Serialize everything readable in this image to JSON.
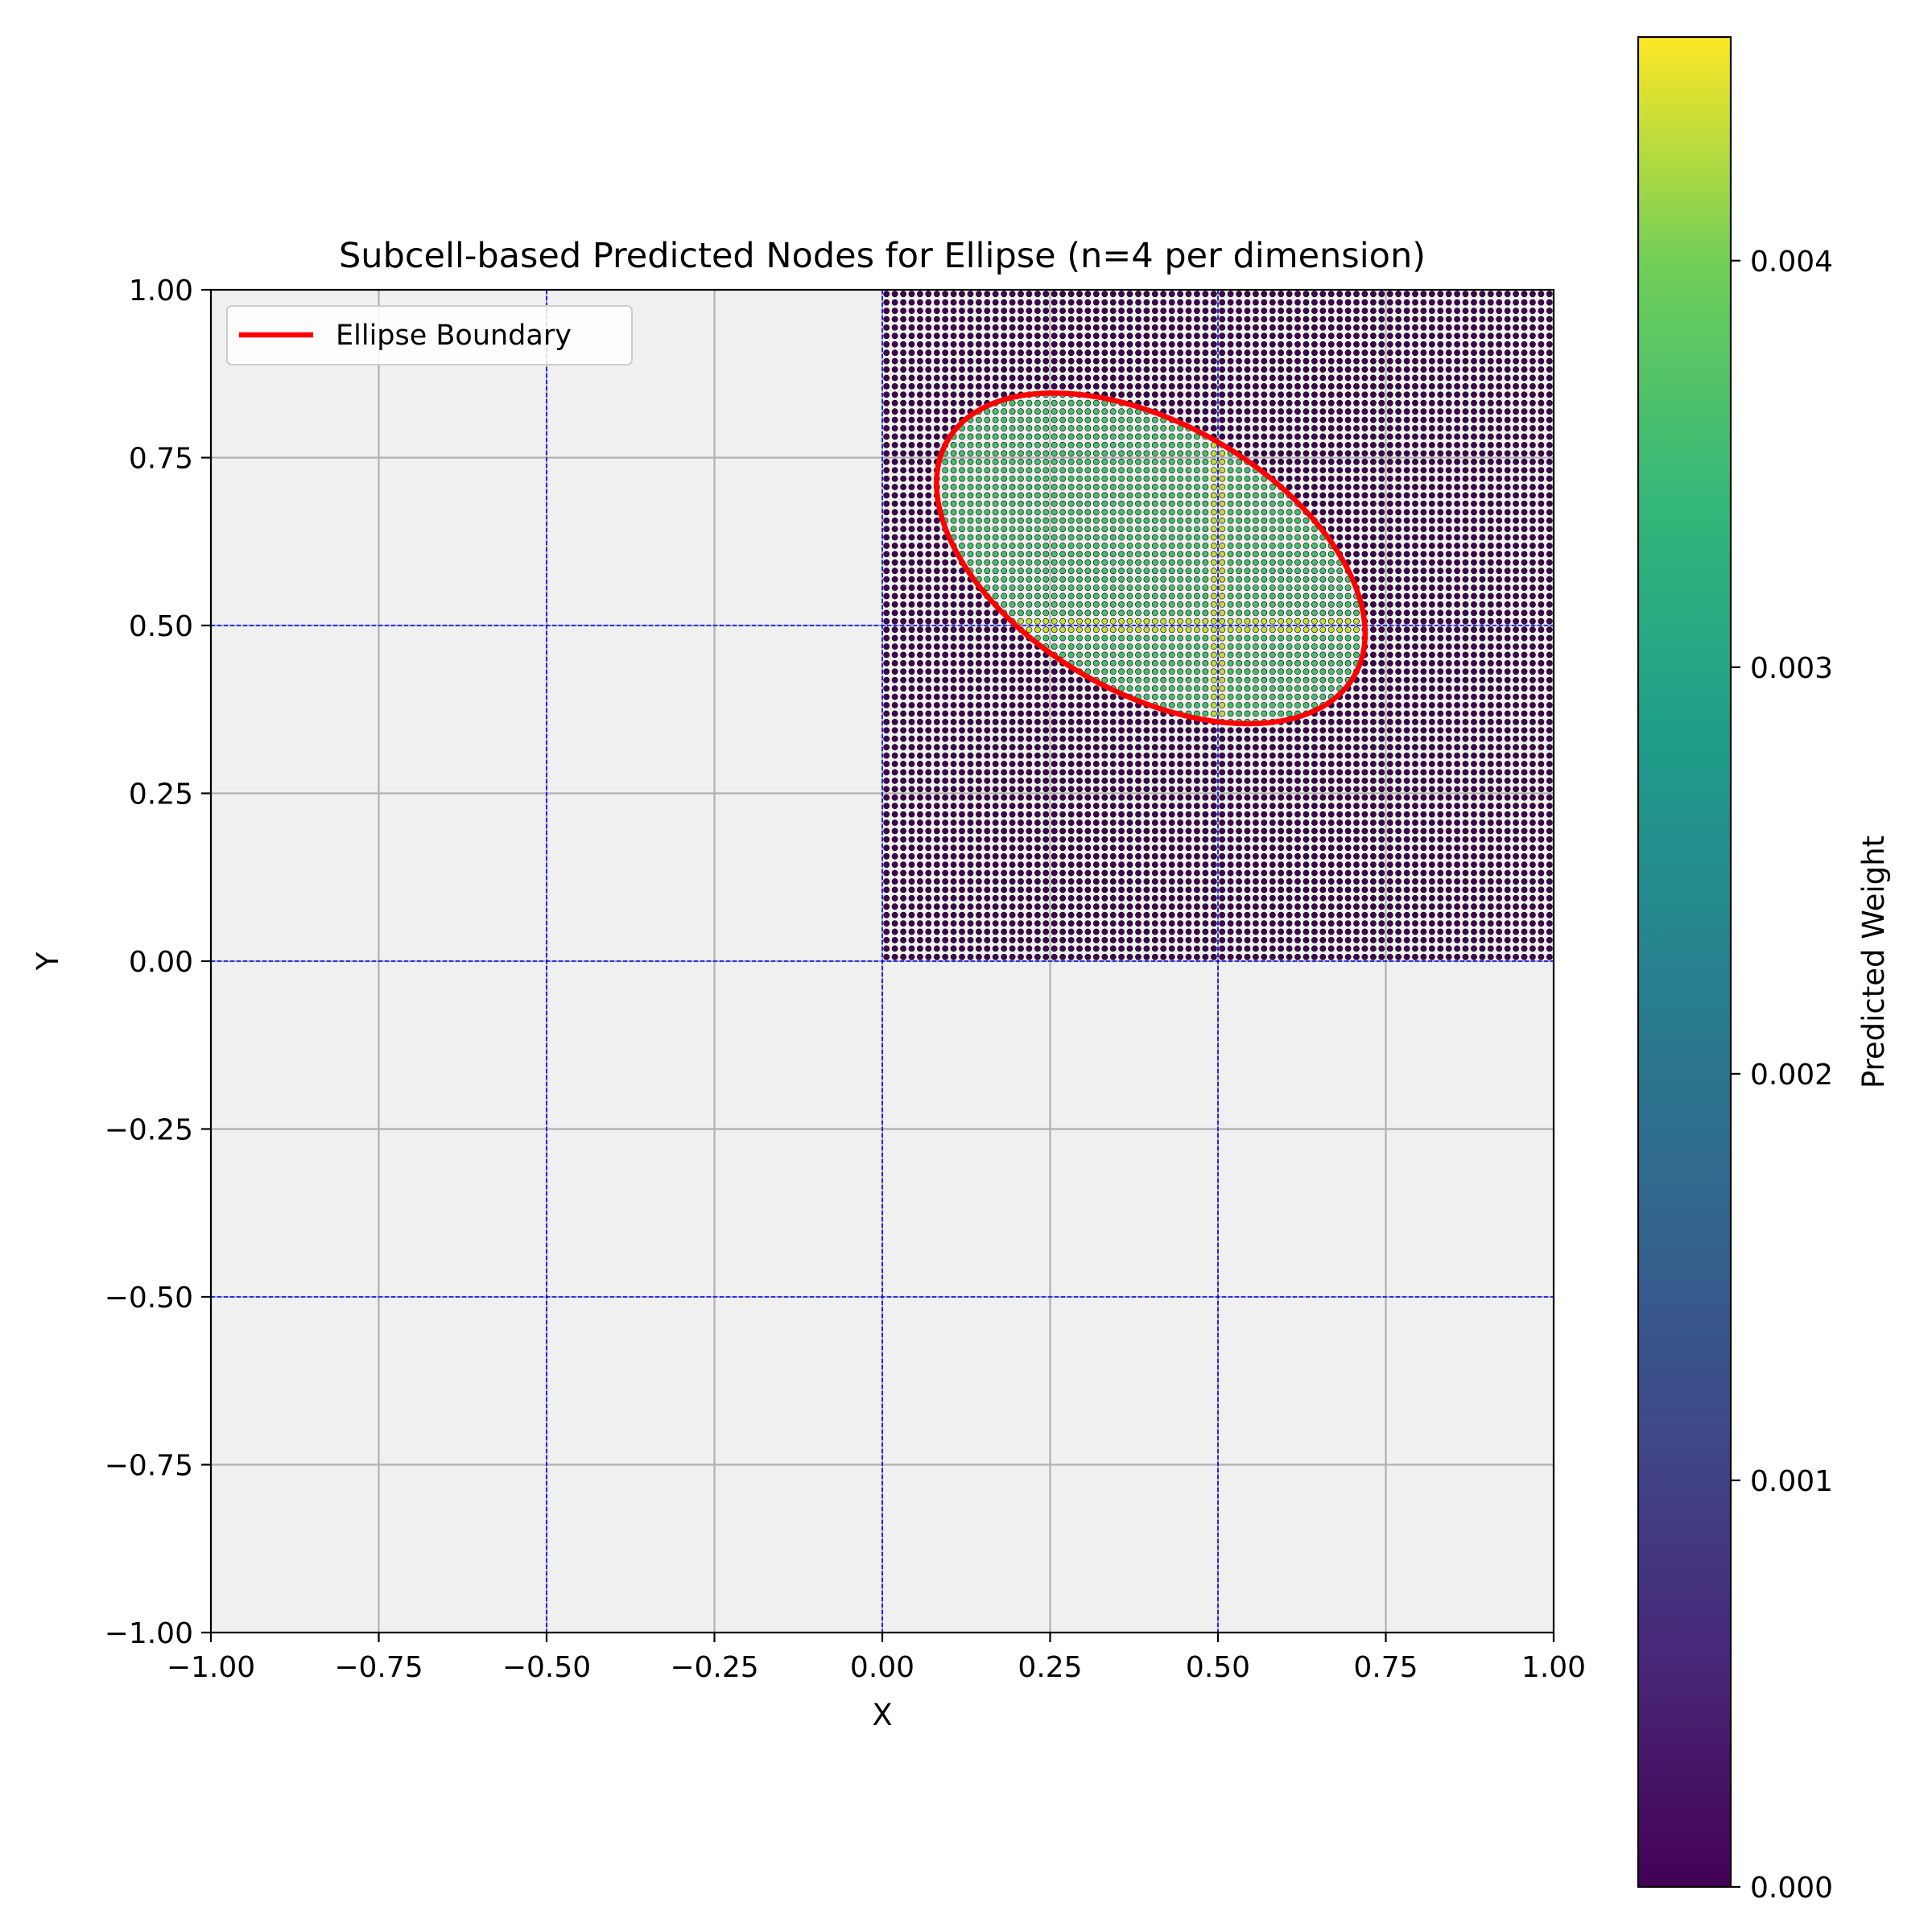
{
  "chart_data": {
    "type": "scatter",
    "title": "Subcell-based Predicted Nodes for Ellipse (n=4 per dimension)",
    "xlabel": "X",
    "ylabel": "Y",
    "xlim": [
      -1.0,
      1.0
    ],
    "ylim": [
      -1.0,
      1.0
    ],
    "xticks": [
      "−1.00",
      "−0.75",
      "−0.50",
      "−0.25",
      "0.00",
      "0.25",
      "0.50",
      "0.75",
      "1.00"
    ],
    "yticks": [
      "−1.00",
      "−0.75",
      "−0.50",
      "−0.25",
      "0.00",
      "0.25",
      "0.50",
      "0.75",
      "1.00"
    ],
    "grid": true,
    "cell_lines": [
      -0.5,
      0.0,
      0.5
    ],
    "legend": {
      "position": "top-left",
      "entries": [
        {
          "label": "Ellipse Boundary",
          "color": "#ff0000"
        }
      ]
    },
    "ellipse": {
      "center": [
        0.4,
        0.6
      ],
      "semi_axes": [
        0.35,
        0.2
      ],
      "angle_deg": -30
    },
    "node_region": {
      "x": [
        0.0,
        1.0
      ],
      "y": [
        0.0,
        1.0
      ],
      "points_per_axis": 80
    },
    "weight_inside": 0.0036,
    "weight_inside_subcell_edge": 0.0043,
    "weight_outside": 0.0,
    "colorbar": {
      "label": "Predicted Weight",
      "colormap": "viridis",
      "range": [
        0.0,
        0.00455
      ],
      "ticks": [
        0.0,
        0.001,
        0.002,
        0.003,
        0.004
      ],
      "tick_labels": [
        "0.000",
        "0.001",
        "0.002",
        "0.003",
        "0.004"
      ]
    }
  },
  "colors": {
    "plot_background": "#f0f0f0",
    "grid": "#b0b0b0",
    "cell_lines": "#0000ff",
    "ellipse": "#ff0000"
  }
}
